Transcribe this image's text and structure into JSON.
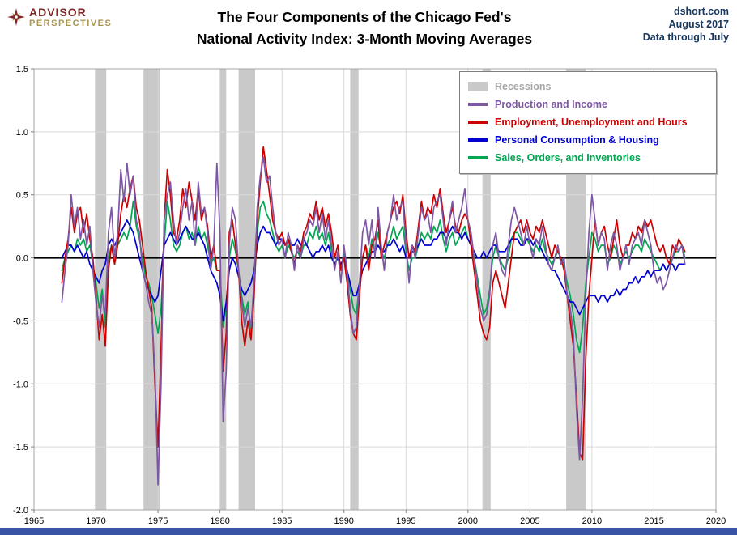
{
  "header": {
    "logo": {
      "line1": "ADVISOR",
      "line2": "PERSPECTIVES"
    },
    "title_line1": "The Four Components of the Chicago Fed's",
    "title_line2": "National Activity Index: 3-Month Moving Averages",
    "meta": {
      "source": "dshort.com",
      "date": "August 2017",
      "note": "Data through July"
    }
  },
  "colors": {
    "meta_text": "#17375e",
    "footer_bar": "#3953a4",
    "logo_red": "#7f2727",
    "logo_gold": "#a8934f",
    "recession_gray": "#c9c9c9",
    "purple": "#7e57a4",
    "red": "#cc0000",
    "blue": "#0000d0",
    "green": "#00a651"
  },
  "legend": {
    "items": [
      {
        "label": "Recessions",
        "color": "#c9c9c9",
        "label_color": "#a6a6a6",
        "marker": "block"
      },
      {
        "label": "Production and Income",
        "color": "#7e57a4",
        "label_color": "#7e57a4",
        "marker": "line"
      },
      {
        "label": "Employment, Unemployment and Hours",
        "color": "#cc0000",
        "label_color": "#cc0000",
        "marker": "line"
      },
      {
        "label": "Personal Consumption & Housing",
        "color": "#0000d0",
        "label_color": "#0000d0",
        "marker": "line"
      },
      {
        "label": "Sales, Orders, and Inventories",
        "color": "#00a651",
        "label_color": "#00a651",
        "marker": "line"
      }
    ]
  },
  "chart_data": {
    "type": "line",
    "title": "The Four Components of the Chicago Fed's National Activity Index: 3-Month Moving Averages",
    "xlabel": "",
    "ylabel": "",
    "xlim": [
      1965,
      2020
    ],
    "ylim": [
      -2.0,
      1.5
    ],
    "x_ticks": [
      1965,
      1970,
      1975,
      1980,
      1985,
      1990,
      1995,
      2000,
      2005,
      2010,
      2015,
      2020
    ],
    "y_ticks": [
      1.5,
      1.0,
      0.5,
      0.0,
      -0.5,
      -1.0,
      -1.5,
      -2.0
    ],
    "y_tick_labels": [
      "1.5",
      "1.0",
      "0.5",
      "0.0",
      "-0.5",
      "-1.0",
      "-1.5",
      "-2.0"
    ],
    "grid": true,
    "zero_line": true,
    "legend_position": "top-right",
    "recession_color": "#c9c9c9",
    "recessions": [
      [
        1969.92,
        1970.83
      ],
      [
        1973.83,
        1975.17
      ],
      [
        1980.0,
        1980.5
      ],
      [
        1981.5,
        1982.83
      ],
      [
        1990.5,
        1991.17
      ],
      [
        2001.17,
        2001.83
      ],
      [
        2007.92,
        2009.5
      ]
    ],
    "x_start": 1967.25,
    "x_step": 0.25,
    "series": [
      {
        "name": "Production and Income",
        "color": "#7e57a4",
        "values": [
          -0.35,
          -0.1,
          0.1,
          0.5,
          0.25,
          0.4,
          0.15,
          0.3,
          0.1,
          0.25,
          -0.1,
          -0.35,
          -0.55,
          -0.3,
          -0.45,
          0.2,
          0.4,
          0.0,
          0.2,
          0.7,
          0.45,
          0.75,
          0.5,
          0.65,
          0.3,
          0.2,
          -0.1,
          -0.2,
          -0.35,
          -0.45,
          -0.9,
          -1.8,
          -1.0,
          0.3,
          0.5,
          0.6,
          0.3,
          0.1,
          0.2,
          0.4,
          0.55,
          0.3,
          0.45,
          0.1,
          0.6,
          0.35,
          0.4,
          0.2,
          -0.1,
          0.1,
          0.75,
          0.2,
          -1.3,
          -0.9,
          0.1,
          0.4,
          0.3,
          -0.1,
          -0.35,
          -0.55,
          -0.4,
          -0.55,
          -0.2,
          0.4,
          0.65,
          0.8,
          0.6,
          0.65,
          0.4,
          0.2,
          0.1,
          0.15,
          0.0,
          0.2,
          0.1,
          -0.1,
          0.1,
          0.0,
          0.15,
          0.2,
          0.3,
          0.25,
          0.4,
          0.2,
          0.35,
          0.15,
          0.3,
          0.1,
          -0.1,
          0.05,
          -0.2,
          0.1,
          -0.1,
          -0.4,
          -0.6,
          -0.55,
          -0.2,
          0.2,
          0.3,
          0.1,
          0.3,
          0.0,
          0.4,
          0.1,
          -0.1,
          0.2,
          0.3,
          0.5,
          0.3,
          0.4,
          0.45,
          0.1,
          -0.2,
          0.1,
          0.0,
          0.2,
          0.4,
          0.3,
          0.35,
          0.2,
          0.4,
          0.45,
          0.5,
          0.3,
          0.1,
          0.3,
          0.45,
          0.2,
          0.3,
          0.4,
          0.55,
          0.3,
          0.2,
          0.0,
          -0.2,
          -0.4,
          -0.5,
          -0.45,
          -0.3,
          0.1,
          0.2,
          0.0,
          -0.1,
          -0.15,
          0.1,
          0.3,
          0.4,
          0.3,
          0.2,
          0.1,
          0.25,
          0.1,
          0.0,
          0.15,
          0.1,
          0.25,
          0.1,
          -0.05,
          -0.1,
          0.0,
          0.1,
          -0.05,
          0.0,
          -0.3,
          -0.4,
          -0.6,
          -1.2,
          -1.6,
          -1.1,
          -0.3,
          0.2,
          0.5,
          0.3,
          0.1,
          0.2,
          0.15,
          -0.1,
          0.1,
          0.2,
          0.1,
          -0.1,
          0.0,
          0.1,
          -0.05,
          0.1,
          0.15,
          0.2,
          0.1,
          0.3,
          0.2,
          0.1,
          -0.1,
          -0.2,
          -0.15,
          -0.25,
          -0.2,
          -0.1,
          0.0,
          0.1,
          0.05,
          0.1,
          -0.05
        ]
      },
      {
        "name": "Employment, Unemployment and Hours",
        "color": "#cc0000",
        "values": [
          -0.2,
          0.0,
          0.15,
          0.4,
          0.2,
          0.35,
          0.4,
          0.2,
          0.35,
          0.15,
          0.0,
          -0.3,
          -0.65,
          -0.45,
          -0.7,
          -0.1,
          0.1,
          -0.05,
          0.1,
          0.35,
          0.5,
          0.4,
          0.55,
          0.65,
          0.4,
          0.3,
          0.1,
          -0.1,
          -0.25,
          -0.4,
          -1.0,
          -1.5,
          -0.7,
          0.3,
          0.7,
          0.5,
          0.2,
          0.15,
          0.3,
          0.55,
          0.4,
          0.6,
          0.45,
          0.3,
          0.55,
          0.3,
          0.4,
          0.25,
          0.0,
          0.1,
          -0.1,
          -0.1,
          -0.9,
          -0.6,
          0.2,
          0.3,
          0.1,
          -0.1,
          -0.5,
          -0.7,
          -0.5,
          -0.65,
          -0.3,
          0.3,
          0.6,
          0.88,
          0.7,
          0.5,
          0.3,
          0.2,
          0.15,
          0.2,
          0.1,
          0.15,
          0.05,
          -0.05,
          0.1,
          0.05,
          0.2,
          0.25,
          0.35,
          0.3,
          0.45,
          0.3,
          0.4,
          0.25,
          0.35,
          0.2,
          0.0,
          0.1,
          -0.1,
          0.0,
          -0.2,
          -0.45,
          -0.6,
          -0.65,
          -0.3,
          0.0,
          0.1,
          -0.1,
          0.1,
          0.15,
          0.3,
          0.0,
          0.1,
          0.2,
          0.3,
          0.4,
          0.45,
          0.35,
          0.5,
          0.2,
          0.0,
          0.1,
          0.05,
          0.25,
          0.45,
          0.3,
          0.4,
          0.35,
          0.5,
          0.4,
          0.55,
          0.35,
          0.2,
          0.3,
          0.4,
          0.25,
          0.2,
          0.3,
          0.35,
          0.3,
          0.1,
          -0.1,
          -0.3,
          -0.5,
          -0.6,
          -0.65,
          -0.55,
          -0.2,
          -0.1,
          -0.2,
          -0.3,
          -0.4,
          -0.2,
          0.0,
          0.2,
          0.25,
          0.3,
          0.2,
          0.3,
          0.2,
          0.15,
          0.25,
          0.2,
          0.3,
          0.2,
          0.1,
          0.0,
          0.1,
          0.05,
          0.0,
          -0.1,
          -0.3,
          -0.5,
          -0.7,
          -1.1,
          -1.55,
          -1.6,
          -0.8,
          -0.3,
          0.0,
          0.3,
          0.1,
          0.2,
          0.25,
          0.1,
          0.0,
          0.15,
          0.3,
          0.1,
          0.0,
          0.1,
          0.1,
          0.2,
          0.15,
          0.25,
          0.2,
          0.3,
          0.25,
          0.3,
          0.2,
          0.1,
          0.05,
          0.1,
          0.0,
          -0.05,
          0.1,
          0.05,
          0.15,
          0.1,
          0.05
        ]
      },
      {
        "name": "Personal Consumption & Housing",
        "color": "#0000d0",
        "values": [
          0.0,
          0.05,
          0.1,
          0.1,
          0.05,
          0.1,
          0.05,
          0.0,
          0.05,
          -0.05,
          -0.1,
          -0.15,
          -0.2,
          -0.1,
          -0.05,
          0.1,
          0.15,
          0.1,
          0.15,
          0.2,
          0.25,
          0.3,
          0.25,
          0.2,
          0.1,
          0.0,
          -0.1,
          -0.2,
          -0.25,
          -0.3,
          -0.35,
          -0.3,
          -0.1,
          0.1,
          0.15,
          0.2,
          0.15,
          0.1,
          0.15,
          0.2,
          0.25,
          0.2,
          0.15,
          0.15,
          0.2,
          0.15,
          0.1,
          0.0,
          -0.1,
          -0.15,
          -0.2,
          -0.3,
          -0.5,
          -0.35,
          -0.1,
          0.0,
          -0.05,
          -0.15,
          -0.25,
          -0.3,
          -0.25,
          -0.2,
          -0.1,
          0.1,
          0.2,
          0.25,
          0.2,
          0.2,
          0.15,
          0.1,
          0.15,
          0.15,
          0.1,
          0.15,
          0.1,
          0.1,
          0.15,
          0.1,
          0.15,
          0.1,
          0.05,
          0.0,
          0.05,
          0.05,
          0.1,
          0.05,
          0.1,
          0.0,
          -0.05,
          0.0,
          -0.05,
          0.0,
          -0.1,
          -0.2,
          -0.3,
          -0.3,
          -0.2,
          -0.1,
          -0.05,
          0.0,
          0.05,
          0.05,
          0.1,
          0.05,
          0.05,
          0.1,
          0.1,
          0.15,
          0.1,
          0.05,
          0.1,
          0.0,
          0.0,
          0.05,
          0.05,
          0.1,
          0.15,
          0.1,
          0.1,
          0.1,
          0.15,
          0.15,
          0.2,
          0.2,
          0.15,
          0.2,
          0.25,
          0.2,
          0.2,
          0.15,
          0.2,
          0.15,
          0.1,
          0.05,
          0.0,
          0.0,
          0.05,
          0.0,
          0.05,
          0.1,
          0.1,
          0.05,
          0.05,
          0.05,
          0.1,
          0.15,
          0.15,
          0.15,
          0.1,
          0.1,
          0.15,
          0.15,
          0.1,
          0.15,
          0.1,
          0.05,
          0.0,
          -0.05,
          -0.1,
          -0.1,
          -0.15,
          -0.2,
          -0.25,
          -0.3,
          -0.35,
          -0.35,
          -0.4,
          -0.45,
          -0.4,
          -0.35,
          -0.3,
          -0.3,
          -0.3,
          -0.35,
          -0.3,
          -0.3,
          -0.35,
          -0.3,
          -0.3,
          -0.25,
          -0.3,
          -0.25,
          -0.25,
          -0.2,
          -0.2,
          -0.15,
          -0.2,
          -0.15,
          -0.15,
          -0.1,
          -0.15,
          -0.1,
          -0.1,
          -0.1,
          -0.05,
          -0.1,
          -0.05,
          -0.05,
          -0.1,
          -0.05,
          -0.05,
          -0.05
        ]
      },
      {
        "name": "Sales, Orders, and Inventories",
        "color": "#00a651",
        "values": [
          -0.1,
          0.0,
          0.05,
          0.1,
          0.05,
          0.15,
          0.1,
          0.15,
          0.05,
          0.1,
          -0.05,
          -0.2,
          -0.4,
          -0.25,
          -0.55,
          0.0,
          0.1,
          -0.05,
          0.1,
          0.15,
          0.2,
          0.15,
          0.25,
          0.45,
          0.25,
          0.15,
          0.0,
          -0.15,
          -0.2,
          -0.3,
          -0.45,
          -0.6,
          -0.4,
          0.1,
          0.45,
          0.3,
          0.1,
          0.05,
          0.1,
          0.2,
          0.25,
          0.15,
          0.2,
          0.1,
          0.25,
          0.15,
          0.2,
          0.1,
          -0.05,
          0.0,
          -0.1,
          -0.1,
          -0.55,
          -0.4,
          0.0,
          0.15,
          0.05,
          -0.1,
          -0.3,
          -0.45,
          -0.35,
          -0.6,
          -0.25,
          0.2,
          0.4,
          0.45,
          0.35,
          0.3,
          0.2,
          0.1,
          0.05,
          0.1,
          0.0,
          0.1,
          0.05,
          0.0,
          0.05,
          0.0,
          0.1,
          0.1,
          0.2,
          0.15,
          0.25,
          0.15,
          0.2,
          0.1,
          0.2,
          0.05,
          -0.05,
          0.0,
          -0.1,
          0.05,
          -0.1,
          -0.25,
          -0.4,
          -0.45,
          -0.2,
          0.0,
          0.1,
          0.0,
          0.15,
          0.05,
          0.2,
          0.05,
          0.0,
          0.1,
          0.15,
          0.25,
          0.15,
          0.2,
          0.25,
          0.05,
          -0.1,
          0.0,
          0.0,
          0.1,
          0.2,
          0.15,
          0.2,
          0.15,
          0.25,
          0.2,
          0.3,
          0.15,
          0.05,
          0.15,
          0.2,
          0.1,
          0.15,
          0.2,
          0.25,
          0.15,
          0.1,
          0.0,
          -0.15,
          -0.3,
          -0.45,
          -0.4,
          -0.25,
          0.0,
          0.1,
          0.0,
          -0.05,
          -0.1,
          0.0,
          0.15,
          0.2,
          0.2,
          0.15,
          0.1,
          0.15,
          0.1,
          0.05,
          0.1,
          0.05,
          0.15,
          0.05,
          0.0,
          -0.05,
          0.0,
          0.05,
          0.0,
          -0.05,
          -0.2,
          -0.3,
          -0.45,
          -0.65,
          -0.75,
          -0.55,
          -0.2,
          0.0,
          0.2,
          0.15,
          0.05,
          0.1,
          0.1,
          -0.05,
          0.0,
          0.1,
          0.05,
          -0.05,
          0.0,
          0.05,
          0.0,
          0.05,
          0.1,
          0.1,
          0.05,
          0.15,
          0.1,
          0.05,
          0.0,
          -0.05,
          -0.1,
          -0.05,
          -0.1,
          -0.05,
          0.0,
          0.05,
          0.05,
          0.1,
          0.0
        ]
      }
    ]
  }
}
